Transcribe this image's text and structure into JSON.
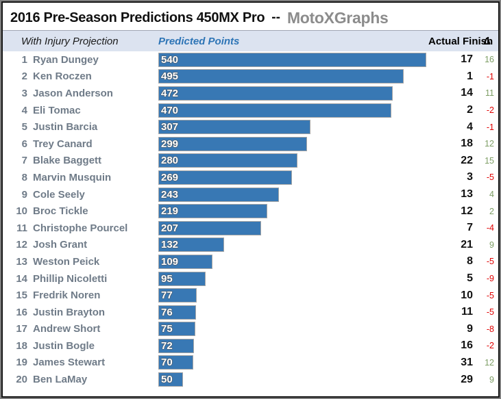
{
  "header": {
    "title": "2016 Pre-Season Predictions 450MX Pro",
    "separator": "--",
    "brand": "MotoXGraphs"
  },
  "columns": {
    "subtitle": "With Injury Projection",
    "predicted": "Predicted Points",
    "actual": "Actual Finish",
    "delta": "Δ"
  },
  "colors": {
    "bar": "#3878b4",
    "bar_border": "#a6a6a6",
    "positive": "#7d9d64",
    "negative": "#e00000",
    "predicted_header": "#2e75b6",
    "band_bg": "#dce3f0",
    "brand": "#8c8c8c",
    "name_text": "#6f7b88",
    "title_text": "#111111",
    "actual_text": "#111111"
  },
  "chart_data": {
    "type": "bar",
    "orientation": "horizontal",
    "title": "2016 Pre-Season Predictions 450MX Pro -- MotoXGraphs",
    "subtitle": "With Injury Projection",
    "value_axis_label": "Predicted Points",
    "max_value": 540,
    "xlim": [
      0,
      540
    ],
    "grid": false,
    "legend": "none",
    "categories": [
      "Ryan Dungey",
      "Ken Roczen",
      "Jason Anderson",
      "Eli Tomac",
      "Justin Barcia",
      "Trey Canard",
      "Blake Baggett",
      "Marvin Musquin",
      "Cole Seely",
      "Broc Tickle",
      "Christophe Pourcel",
      "Josh Grant",
      "Weston Peick",
      "Phillip Nicoletti",
      "Fredrik Noren",
      "Justin Brayton",
      "Andrew Short",
      "Justin Bogle",
      "James Stewart",
      "Ben LaMay"
    ],
    "series": [
      {
        "name": "Predicted Points",
        "values": [
          540,
          495,
          472,
          470,
          307,
          299,
          280,
          269,
          243,
          219,
          207,
          132,
          109,
          95,
          77,
          76,
          75,
          72,
          70,
          50
        ]
      },
      {
        "name": "Actual Finish",
        "values": [
          17,
          1,
          14,
          2,
          4,
          18,
          22,
          3,
          13,
          12,
          7,
          21,
          8,
          5,
          10,
          11,
          9,
          16,
          31,
          29
        ]
      },
      {
        "name": "Δ",
        "values": [
          16,
          -1,
          11,
          -2,
          -1,
          12,
          15,
          -5,
          4,
          2,
          -4,
          9,
          -5,
          -9,
          -5,
          -5,
          -8,
          -2,
          12,
          9
        ]
      }
    ]
  },
  "rows": [
    {
      "rank": 1,
      "name": "Ryan Dungey",
      "predicted": 540,
      "actual": 17,
      "delta": 16
    },
    {
      "rank": 2,
      "name": "Ken Roczen",
      "predicted": 495,
      "actual": 1,
      "delta": -1
    },
    {
      "rank": 3,
      "name": "Jason Anderson",
      "predicted": 472,
      "actual": 14,
      "delta": 11
    },
    {
      "rank": 4,
      "name": "Eli Tomac",
      "predicted": 470,
      "actual": 2,
      "delta": -2
    },
    {
      "rank": 5,
      "name": "Justin Barcia",
      "predicted": 307,
      "actual": 4,
      "delta": -1
    },
    {
      "rank": 6,
      "name": "Trey Canard",
      "predicted": 299,
      "actual": 18,
      "delta": 12
    },
    {
      "rank": 7,
      "name": "Blake Baggett",
      "predicted": 280,
      "actual": 22,
      "delta": 15
    },
    {
      "rank": 8,
      "name": "Marvin Musquin",
      "predicted": 269,
      "actual": 3,
      "delta": -5
    },
    {
      "rank": 9,
      "name": "Cole Seely",
      "predicted": 243,
      "actual": 13,
      "delta": 4
    },
    {
      "rank": 10,
      "name": "Broc Tickle",
      "predicted": 219,
      "actual": 12,
      "delta": 2
    },
    {
      "rank": 11,
      "name": "Christophe Pourcel",
      "predicted": 207,
      "actual": 7,
      "delta": -4
    },
    {
      "rank": 12,
      "name": "Josh Grant",
      "predicted": 132,
      "actual": 21,
      "delta": 9
    },
    {
      "rank": 13,
      "name": "Weston Peick",
      "predicted": 109,
      "actual": 8,
      "delta": -5
    },
    {
      "rank": 14,
      "name": "Phillip Nicoletti",
      "predicted": 95,
      "actual": 5,
      "delta": -9
    },
    {
      "rank": 15,
      "name": "Fredrik Noren",
      "predicted": 77,
      "actual": 10,
      "delta": -5
    },
    {
      "rank": 16,
      "name": "Justin Brayton",
      "predicted": 76,
      "actual": 11,
      "delta": -5
    },
    {
      "rank": 17,
      "name": "Andrew Short",
      "predicted": 75,
      "actual": 9,
      "delta": -8
    },
    {
      "rank": 18,
      "name": "Justin Bogle",
      "predicted": 72,
      "actual": 16,
      "delta": -2
    },
    {
      "rank": 19,
      "name": "James Stewart",
      "predicted": 70,
      "actual": 31,
      "delta": 12
    },
    {
      "rank": 20,
      "name": "Ben LaMay",
      "predicted": 50,
      "actual": 29,
      "delta": 9
    }
  ]
}
